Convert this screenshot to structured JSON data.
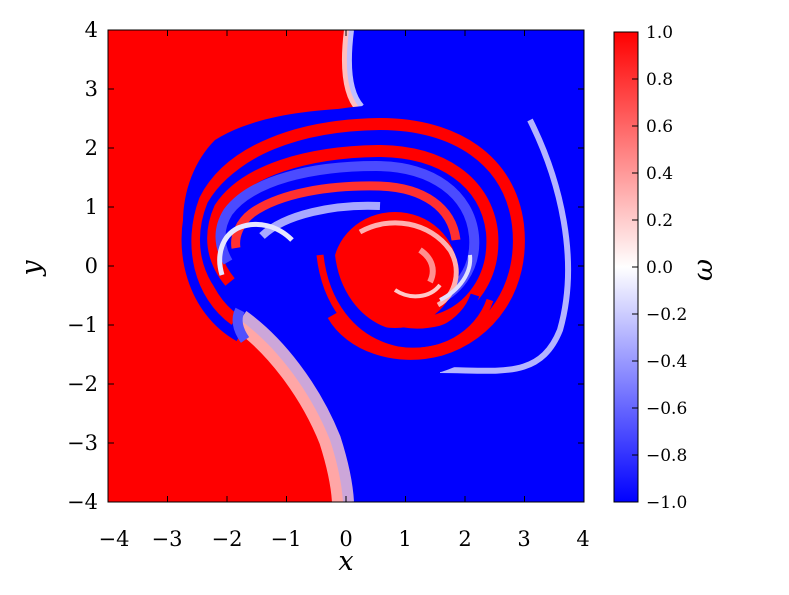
{
  "chart_data": {
    "type": "heatmap",
    "title": "",
    "xlabel": "x",
    "ylabel": "y",
    "xlim": [
      -4,
      4
    ],
    "ylim": [
      -4,
      4
    ],
    "x_ticks": [
      "−4",
      "−3",
      "−2",
      "−1",
      "0",
      "1",
      "2",
      "3",
      "4"
    ],
    "y_ticks": [
      "−4",
      "−3",
      "−2",
      "−1",
      "0",
      "1",
      "2",
      "3",
      "4"
    ],
    "colorbar": {
      "label": "ω",
      "range": [
        -1.0,
        1.0
      ],
      "ticks": [
        "−1.0",
        "−0.8",
        "−0.6",
        "−0.4",
        "−0.2",
        "0.0",
        "0.2",
        "0.4",
        "0.6",
        "0.8",
        "1.0"
      ],
      "colormap": [
        "#0000ff",
        "#ffffff",
        "#ff0000"
      ]
    },
    "field_description": "vorticity field ω(x,y): left half ≈ +1, right half ≈ −1, rolled into a double spiral centred near (0.8, 0)"
  },
  "colors": {
    "positive": "#ff0000",
    "negative": "#0000ff",
    "neutral": "#ffffff"
  }
}
